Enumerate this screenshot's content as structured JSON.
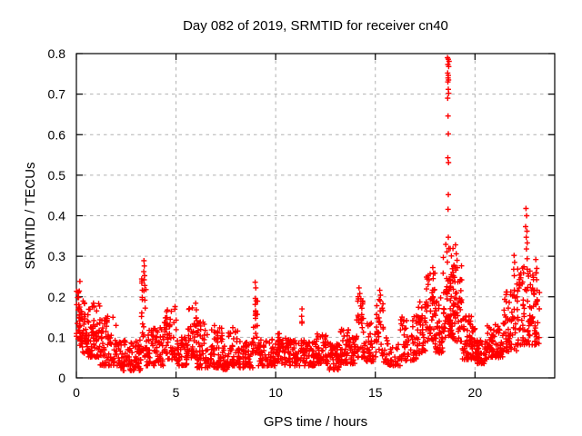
{
  "window": {
    "background": "#ffffff"
  },
  "chart_data": {
    "type": "scatter",
    "title": "Day 082 of 2019, SRMTID for receiver cn40",
    "xlabel": "GPS time / hours",
    "ylabel": "SRMTID / TECUs",
    "xlim": [
      0,
      24
    ],
    "ylim": [
      0,
      0.8
    ],
    "xticks": [
      0,
      5,
      10,
      15,
      20
    ],
    "xtick_labels": [
      "0",
      "5",
      "10",
      "15",
      "20"
    ],
    "yticks": [
      0,
      0.1,
      0.2,
      0.3,
      0.4,
      0.5,
      0.6,
      0.7,
      0.8
    ],
    "ytick_labels": [
      "0",
      "0.1",
      "0.2",
      "0.3",
      "0.4",
      "0.5",
      "0.6",
      "0.7",
      "0.8"
    ],
    "grid": true,
    "grid_style": "dashed",
    "grid_color": "#b0b0b0",
    "axis_color": "#000000",
    "legend": "none",
    "marker": {
      "shape": "plus",
      "color": "#ff0000",
      "size": 7
    },
    "seed": 20190082,
    "points_estimated_total": 2130,
    "_envelope_fields": "t_start_hours, t_end_hours, n_points, value_min_TECUs, value_max_TECUs, low_bias_exponent",
    "scatter_envelope": [
      [
        0.0,
        0.15,
        22,
        0.09,
        0.215,
        1.2
      ],
      [
        0.15,
        0.6,
        55,
        0.06,
        0.2,
        1.5
      ],
      [
        0.6,
        1.2,
        65,
        0.05,
        0.185,
        1.6
      ],
      [
        1.2,
        2.1,
        80,
        0.03,
        0.155,
        1.8
      ],
      [
        2.1,
        3.25,
        95,
        0.018,
        0.095,
        1.6
      ],
      [
        3.25,
        3.5,
        22,
        0.05,
        0.26,
        1.3
      ],
      [
        3.5,
        4.4,
        75,
        0.03,
        0.125,
        1.7
      ],
      [
        4.4,
        5.05,
        55,
        0.045,
        0.185,
        1.8
      ],
      [
        5.05,
        5.6,
        45,
        0.03,
        0.1,
        1.6
      ],
      [
        5.6,
        6.05,
        40,
        0.05,
        0.19,
        1.8
      ],
      [
        6.05,
        6.7,
        55,
        0.025,
        0.14,
        1.8
      ],
      [
        6.7,
        7.35,
        55,
        0.025,
        0.13,
        1.8
      ],
      [
        7.35,
        7.6,
        20,
        0.02,
        0.08,
        1.5
      ],
      [
        7.6,
        8.15,
        45,
        0.03,
        0.125,
        1.8
      ],
      [
        8.15,
        8.85,
        55,
        0.025,
        0.095,
        1.6
      ],
      [
        8.85,
        9.1,
        20,
        0.06,
        0.21,
        1.4
      ],
      [
        9.1,
        10.1,
        80,
        0.03,
        0.095,
        1.6
      ],
      [
        10.1,
        10.45,
        28,
        0.035,
        0.11,
        1.6
      ],
      [
        10.45,
        11.2,
        60,
        0.03,
        0.1,
        1.6
      ],
      [
        11.2,
        11.45,
        20,
        0.04,
        0.155,
        1.5
      ],
      [
        11.45,
        12.0,
        45,
        0.03,
        0.09,
        1.6
      ],
      [
        12.0,
        12.65,
        55,
        0.035,
        0.115,
        1.7
      ],
      [
        12.65,
        13.25,
        50,
        0.02,
        0.085,
        1.6
      ],
      [
        13.25,
        13.65,
        35,
        0.03,
        0.12,
        1.7
      ],
      [
        13.65,
        14.0,
        30,
        0.035,
        0.12,
        1.6
      ],
      [
        14.0,
        14.4,
        35,
        0.05,
        0.21,
        1.6
      ],
      [
        14.4,
        15.05,
        50,
        0.04,
        0.135,
        1.6
      ],
      [
        15.05,
        15.4,
        30,
        0.055,
        0.2,
        1.5
      ],
      [
        15.4,
        16.25,
        40,
        0.03,
        0.1,
        1.6
      ],
      [
        16.25,
        17.1,
        55,
        0.04,
        0.155,
        1.6
      ],
      [
        17.1,
        17.55,
        45,
        0.06,
        0.19,
        1.6
      ],
      [
        17.55,
        18.0,
        45,
        0.09,
        0.26,
        1.4
      ],
      [
        18.0,
        18.4,
        45,
        0.06,
        0.2,
        1.5
      ],
      [
        18.4,
        18.9,
        70,
        0.1,
        0.33,
        1.4
      ],
      [
        18.9,
        19.35,
        55,
        0.09,
        0.28,
        1.5
      ],
      [
        19.35,
        20.05,
        75,
        0.045,
        0.16,
        1.7
      ],
      [
        20.05,
        20.6,
        55,
        0.035,
        0.095,
        1.5
      ],
      [
        20.6,
        21.4,
        70,
        0.05,
        0.135,
        1.6
      ],
      [
        21.4,
        22.1,
        65,
        0.065,
        0.22,
        1.7
      ],
      [
        22.1,
        22.75,
        65,
        0.08,
        0.3,
        1.6
      ],
      [
        22.75,
        23.25,
        55,
        0.08,
        0.27,
        1.5
      ]
    ],
    "_outlier_fields": "t_hours, value_TECUs",
    "outlier_points": [
      [
        0.18,
        0.238
      ],
      [
        3.39,
        0.289
      ],
      [
        3.41,
        0.276
      ],
      [
        3.38,
        0.262
      ],
      [
        3.42,
        0.252
      ],
      [
        3.4,
        0.242
      ],
      [
        3.43,
        0.228
      ],
      [
        3.39,
        0.215
      ],
      [
        8.97,
        0.236
      ],
      [
        9.0,
        0.222
      ],
      [
        8.98,
        0.196
      ],
      [
        9.02,
        0.19
      ],
      [
        9.0,
        0.158
      ],
      [
        8.99,
        0.147
      ],
      [
        11.32,
        0.17
      ],
      [
        11.3,
        0.152
      ],
      [
        14.18,
        0.222
      ],
      [
        14.22,
        0.208
      ],
      [
        14.15,
        0.195
      ],
      [
        15.22,
        0.216
      ],
      [
        15.26,
        0.204
      ],
      [
        15.24,
        0.19
      ],
      [
        17.65,
        0.252
      ],
      [
        17.7,
        0.242
      ],
      [
        17.88,
        0.272
      ],
      [
        17.92,
        0.258
      ],
      [
        17.9,
        0.245
      ],
      [
        18.62,
        0.79
      ],
      [
        18.66,
        0.786
      ],
      [
        18.7,
        0.781
      ],
      [
        18.64,
        0.773
      ],
      [
        18.68,
        0.768
      ],
      [
        18.63,
        0.752
      ],
      [
        18.66,
        0.746
      ],
      [
        18.65,
        0.74
      ],
      [
        18.67,
        0.735
      ],
      [
        18.64,
        0.73
      ],
      [
        18.66,
        0.712
      ],
      [
        18.68,
        0.702
      ],
      [
        18.63,
        0.69
      ],
      [
        18.65,
        0.646
      ],
      [
        18.66,
        0.602
      ],
      [
        18.64,
        0.543
      ],
      [
        18.67,
        0.531
      ],
      [
        18.66,
        0.452
      ],
      [
        18.65,
        0.416
      ],
      [
        18.66,
        0.347
      ],
      [
        19.02,
        0.328
      ],
      [
        19.06,
        0.306
      ],
      [
        19.1,
        0.29
      ],
      [
        21.96,
        0.302
      ],
      [
        21.99,
        0.285
      ],
      [
        21.94,
        0.268
      ],
      [
        21.97,
        0.252
      ],
      [
        22.56,
        0.418
      ],
      [
        22.59,
        0.4
      ],
      [
        22.54,
        0.373
      ],
      [
        22.61,
        0.362
      ],
      [
        22.57,
        0.347
      ],
      [
        22.62,
        0.333
      ],
      [
        22.58,
        0.318
      ],
      [
        23.05,
        0.292
      ],
      [
        23.1,
        0.27
      ]
    ]
  }
}
